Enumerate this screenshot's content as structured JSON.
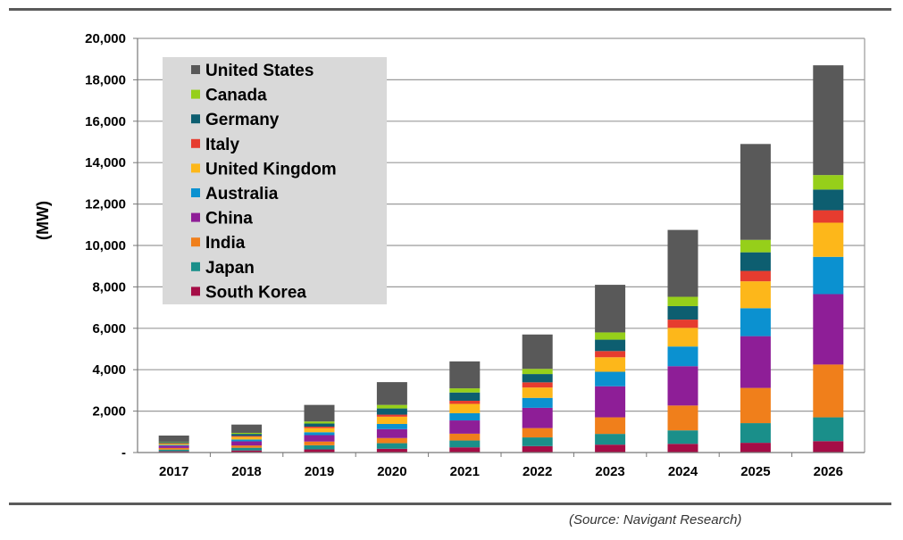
{
  "source_note": "(Source: Navigant Research)",
  "chart_data": {
    "type": "bar",
    "stacked": true,
    "title": "",
    "xlabel": "",
    "ylabel": "(MW)",
    "ylim": [
      0,
      20000
    ],
    "yticks": [
      0,
      2000,
      4000,
      6000,
      8000,
      10000,
      12000,
      14000,
      16000,
      18000,
      20000
    ],
    "ytick_labels": [
      "-",
      "2,000",
      "4,000",
      "6,000",
      "8,000",
      "10,000",
      "12,000",
      "14,000",
      "16,000",
      "18,000",
      "20,000"
    ],
    "grid": true,
    "legend_position": "top-left",
    "categories": [
      "2017",
      "2018",
      "2019",
      "2020",
      "2021",
      "2022",
      "2023",
      "2024",
      "2025",
      "2026"
    ],
    "series": [
      {
        "name": "South Korea",
        "color": "#a50d46",
        "values": [
          60,
          100,
          150,
          180,
          250,
          310,
          380,
          420,
          470,
          550
        ]
      },
      {
        "name": "Japan",
        "color": "#1a8f8a",
        "values": [
          80,
          130,
          200,
          270,
          330,
          420,
          520,
          650,
          950,
          1150
        ]
      },
      {
        "name": "India",
        "color": "#f07f1b",
        "values": [
          80,
          110,
          180,
          250,
          330,
          450,
          800,
          1200,
          1700,
          2550
        ]
      },
      {
        "name": "China",
        "color": "#8e1e97",
        "values": [
          110,
          200,
          310,
          430,
          640,
          980,
          1500,
          1900,
          2500,
          3400
        ]
      },
      {
        "name": "Australia",
        "color": "#0b91d0",
        "values": [
          40,
          90,
          140,
          250,
          350,
          480,
          700,
          950,
          1350,
          1800
        ]
      },
      {
        "name": "United Kingdom",
        "color": "#fdb71a",
        "values": [
          60,
          130,
          200,
          350,
          450,
          500,
          700,
          900,
          1300,
          1650
        ]
      },
      {
        "name": "Italy",
        "color": "#e63c2f",
        "values": [
          20,
          40,
          70,
          100,
          150,
          250,
          300,
          400,
          500,
          600
        ]
      },
      {
        "name": "Germany",
        "color": "#0d5e70",
        "values": [
          50,
          100,
          150,
          300,
          400,
          400,
          550,
          650,
          900,
          1000
        ]
      },
      {
        "name": "Canada",
        "color": "#96cf1a",
        "values": [
          20,
          50,
          100,
          170,
          200,
          250,
          350,
          450,
          600,
          700
        ]
      },
      {
        "name": "United States",
        "color": "#595959",
        "values": [
          300,
          400,
          800,
          1100,
          1300,
          1660,
          2300,
          3230,
          4630,
          5300
        ]
      }
    ]
  }
}
